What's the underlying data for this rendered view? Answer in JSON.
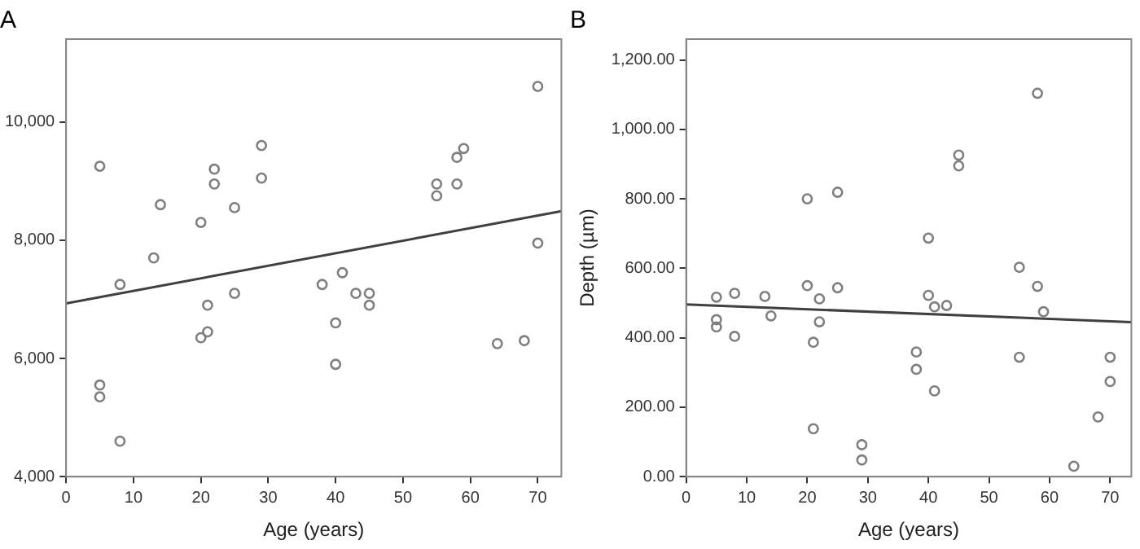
{
  "chart_data": [
    {
      "type": "scatter",
      "title": "A",
      "xlabel": "Age (years)",
      "xlim": [
        0,
        73.5
      ],
      "xticks": [
        0,
        10,
        20,
        30,
        40,
        50,
        60,
        70
      ],
      "ylim": [
        4000,
        11400
      ],
      "yticks": [
        {
          "value": 4000,
          "label": "4,000"
        },
        {
          "value": 6000,
          "label": "6,000"
        },
        {
          "value": 8000,
          "label": "8,000"
        },
        {
          "value": 10000,
          "label": "10,000"
        }
      ],
      "grid": false,
      "legend": false,
      "marker": "circle",
      "series": [
        {
          "type": "scatter",
          "color": "#7f7f7f",
          "x": [
            5,
            14,
            20,
            22,
            22,
            25,
            29,
            29,
            55,
            55,
            58,
            58,
            59,
            70,
            70,
            13,
            8,
            5,
            5,
            8,
            20,
            21,
            21,
            25,
            38,
            41,
            40,
            40,
            43,
            45,
            45,
            64,
            68
          ],
          "values": [
            9250,
            8600,
            8300,
            9200,
            8950,
            8550,
            9600,
            9050,
            8950,
            8750,
            8950,
            9400,
            9550,
            10600,
            7950,
            7700,
            7250,
            5550,
            5350,
            4600,
            6350,
            6450,
            6900,
            7100,
            7250,
            7450,
            6600,
            5900,
            7100,
            7100,
            6900,
            6250,
            6300
          ]
        },
        {
          "type": "line",
          "color": "#404040",
          "marker": "none",
          "x": [
            0,
            73.5
          ],
          "values": [
            6930,
            8490
          ]
        }
      ]
    },
    {
      "type": "scatter",
      "title": "B",
      "xlabel": "Age (years)",
      "ylabel": "Depth (µm)",
      "xlim": [
        0,
        73.5
      ],
      "xticks": [
        0,
        10,
        20,
        30,
        40,
        50,
        60,
        70
      ],
      "ylim": [
        0,
        1260
      ],
      "yticks": [
        {
          "value": 0,
          "label": "0.00"
        },
        {
          "value": 200,
          "label": "200.00"
        },
        {
          "value": 400,
          "label": "400.00"
        },
        {
          "value": 600,
          "label": "600.00"
        },
        {
          "value": 800,
          "label": "800.00"
        },
        {
          "value": 1000,
          "label": "1,000.00"
        },
        {
          "value": 1200,
          "label": "1,200.00"
        }
      ],
      "grid": false,
      "legend": false,
      "marker": "circle",
      "series": [
        {
          "type": "scatter",
          "color": "#7f7f7f",
          "x": [
            20,
            25,
            40,
            45,
            45,
            58,
            55,
            5,
            5,
            5,
            8,
            8,
            13,
            14,
            20,
            22,
            22,
            21,
            21,
            25,
            29,
            29,
            38,
            38,
            40,
            41,
            41,
            43,
            55,
            58,
            59,
            64,
            68,
            70,
            70
          ],
          "values": [
            800,
            819,
            687,
            926,
            895,
            1104,
            603,
            517,
            452,
            431,
            528,
            404,
            519,
            463,
            550,
            512,
            446,
            387,
            138,
            544,
            92,
            48,
            359,
            309,
            522,
            489,
            247,
            493,
            344,
            548,
            475,
            30,
            172,
            344,
            274
          ]
        },
        {
          "type": "line",
          "color": "#404040",
          "marker": "none",
          "x": [
            0,
            73.5
          ],
          "values": [
            496,
            445
          ]
        }
      ]
    }
  ]
}
